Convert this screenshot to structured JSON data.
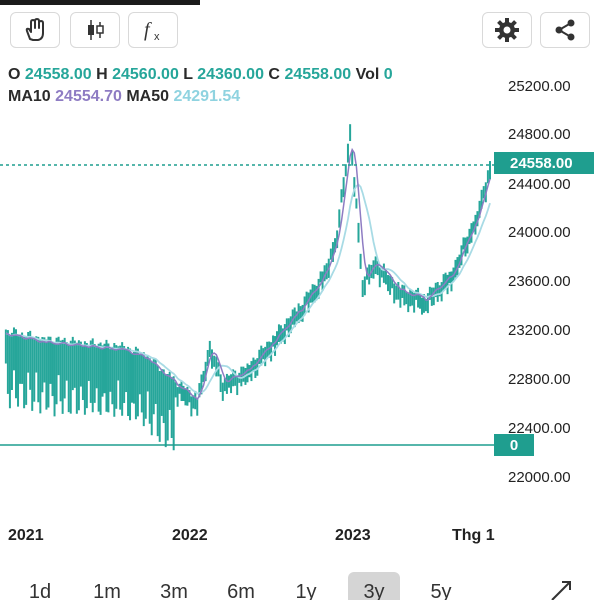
{
  "toolbar": {
    "draw_icon": "hand-pointer-icon",
    "candles_icon": "candlestick-icon",
    "indicator_icon": "function-fx-icon",
    "settings_icon": "gear-icon",
    "share_icon": "share-icon"
  },
  "ohlc": {
    "o_label": "O",
    "o_value": "24558.00",
    "h_label": "H",
    "h_value": "24560.00",
    "l_label": "L",
    "l_value": "24360.00",
    "c_label": "C",
    "c_value": "24558.00",
    "vol_label": "Vol",
    "vol_value": "0"
  },
  "ma": {
    "ma10_label": "MA10",
    "ma10_value": "24554.70",
    "ma50_label": "MA50",
    "ma50_value": "24291.54"
  },
  "price_axis": {
    "ticks": [
      "25200.00",
      "24800.00",
      "24400.00",
      "24000.00",
      "23600.00",
      "23200.00",
      "22800.00",
      "22400.00",
      "22000.00"
    ],
    "current_price": "24558.00",
    "volume_marker": "0"
  },
  "time_axis": {
    "labels": [
      "2021",
      "2022",
      "2023",
      "Thg 1"
    ]
  },
  "timeframes": {
    "items": [
      "1d",
      "1m",
      "3m",
      "6m",
      "1y",
      "3y",
      "5y"
    ],
    "selected": "3y"
  },
  "colors": {
    "candle": "#26a69a",
    "ma10": "#8e7cc3",
    "ma50": "#a8dbe5",
    "price_line": "#1f9e8f",
    "active_timeframe_bg": "#d5d5d5"
  },
  "chart_data": {
    "type": "line",
    "ylim": [
      22000,
      25200
    ],
    "close_series": [
      {
        "x": "2020-08",
        "y": 23150
      },
      {
        "x": "2020-11",
        "y": 23080
      },
      {
        "x": "2021-02",
        "y": 23050
      },
      {
        "x": "2021-05",
        "y": 23020
      },
      {
        "x": "2021-07",
        "y": 22950
      },
      {
        "x": "2021-09",
        "y": 22750
      },
      {
        "x": "2021-11",
        "y": 22600
      },
      {
        "x": "2021-12",
        "y": 23050
      },
      {
        "x": "2022-01",
        "y": 22750
      },
      {
        "x": "2022-03",
        "y": 22850
      },
      {
        "x": "2022-05",
        "y": 23100
      },
      {
        "x": "2022-07",
        "y": 23350
      },
      {
        "x": "2022-09",
        "y": 23650
      },
      {
        "x": "2022-10",
        "y": 24000
      },
      {
        "x": "2022-11",
        "y": 24850
      },
      {
        "x": "2022-12",
        "y": 23600
      },
      {
        "x": "2023-01",
        "y": 23750
      },
      {
        "x": "2023-03",
        "y": 23500
      },
      {
        "x": "2023-05",
        "y": 23450
      },
      {
        "x": "2023-07",
        "y": 23650
      },
      {
        "x": "2023-09",
        "y": 24150
      },
      {
        "x": "2023-10",
        "y": 24558
      }
    ]
  }
}
